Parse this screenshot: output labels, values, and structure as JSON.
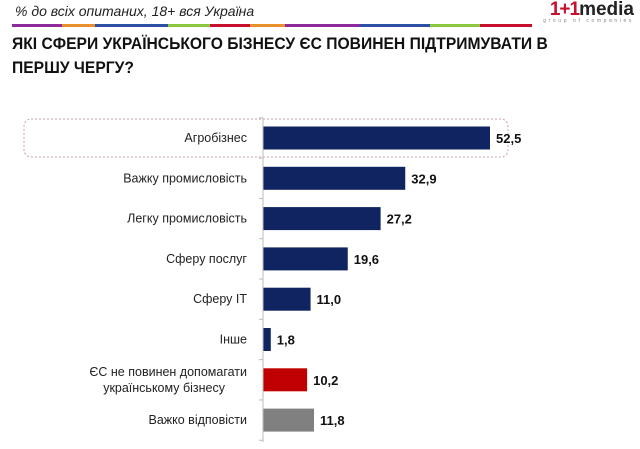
{
  "header": {
    "subtitle": "% до всіх опитаних, 18+ вся Україна",
    "logo": {
      "mark": "1+1",
      "word": "media",
      "tagline": "group of companies"
    },
    "stripe_colors": [
      "#8e2a9c",
      "#e8912d",
      "#2e4fa6",
      "#8dc63f",
      "#c8102e",
      "#e8912d",
      "#8e2a9c",
      "#2e4fa6",
      "#8dc63f",
      "#c8102e"
    ]
  },
  "chart_data": {
    "type": "bar",
    "orientation": "horizontal",
    "title": "ЯКІ СФЕРИ УКРАЇНСЬКОГО БІЗНЕСУ ЄС ПОВИНЕН ПІДТРИМУВАТИ В ПЕРШУ ЧЕРГУ?",
    "categories": [
      [
        "Агробізнес"
      ],
      [
        "Важку промисловість"
      ],
      [
        "Легку промисловість"
      ],
      [
        "Сферу послуг"
      ],
      [
        "Сферу IT"
      ],
      [
        "Інше"
      ],
      [
        "ЄС не повинен допомагати",
        "українському бізнесу"
      ],
      [
        "Важко відповісти"
      ]
    ],
    "values": [
      52.5,
      32.9,
      27.2,
      19.6,
      11.0,
      1.8,
      10.2,
      11.8
    ],
    "value_labels": [
      "52,5",
      "32,9",
      "27,2",
      "19,6",
      "11,0",
      "1,8",
      "10,2",
      "11,8"
    ],
    "colors": [
      "#0f2461",
      "#0f2461",
      "#0f2461",
      "#0f2461",
      "#0f2461",
      "#0f2461",
      "#c00000",
      "#808080"
    ],
    "highlighted_category": "Агробізнес",
    "xlim": [
      0,
      60
    ],
    "grid": false
  }
}
